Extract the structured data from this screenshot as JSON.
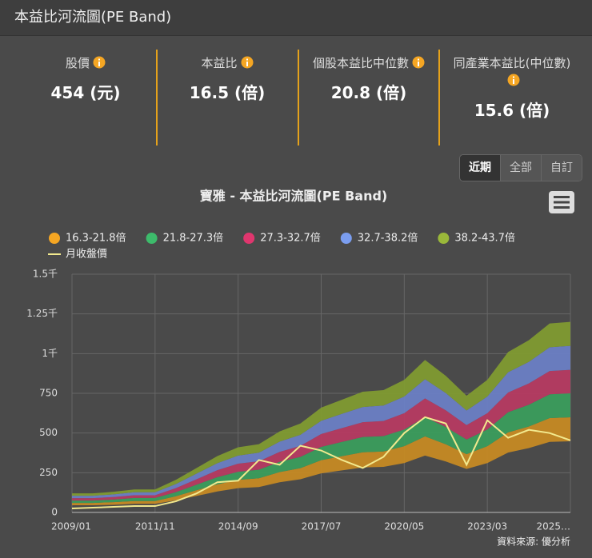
{
  "header": {
    "title": "本益比河流圖(PE Band)"
  },
  "stats": [
    {
      "label": "股價",
      "value": "454 (元)"
    },
    {
      "label": "本益比",
      "value": "16.5 (倍)"
    },
    {
      "label": "個股本益比中位數",
      "value": "20.8 (倍)"
    },
    {
      "label": "同產業本益比(中位數)",
      "value": "15.6 (倍)"
    }
  ],
  "range_buttons": [
    "近期",
    "全部",
    "自訂"
  ],
  "chart_data": {
    "type": "arearange",
    "title": "寶雅 - 本益比河流圖(PE Band)",
    "categories": [
      "2009/01",
      null,
      null,
      null,
      "2011/11",
      null,
      null,
      null,
      "2014/09",
      null,
      null,
      null,
      "2017/07",
      null,
      null,
      null,
      "2020/05",
      null,
      null,
      null,
      "2023/03",
      null,
      null,
      null,
      "2025…"
    ],
    "series": [
      {
        "name": "16.3-21.8倍",
        "color": "#c98b22",
        "legend_color": "#f5a623",
        "low": [
          45,
          45,
          48,
          54,
          54,
          76,
          104,
          132,
          153,
          160,
          190,
          209,
          246,
          265,
          283,
          287,
          311,
          358,
          321,
          274,
          311,
          377,
          405,
          444,
          448
        ],
        "high": [
          60,
          60,
          65,
          72,
          72,
          102,
          140,
          177,
          205,
          215,
          254,
          279,
          329,
          354,
          379,
          384,
          417,
          479,
          429,
          367,
          417,
          504,
          541,
          594,
          599
        ]
      },
      {
        "name": "21.8-27.3倍",
        "color": "#3a9e5c",
        "legend_color": "#3dbb6b",
        "low": [
          60,
          60,
          65,
          72,
          72,
          102,
          140,
          177,
          205,
          215,
          254,
          279,
          329,
          354,
          379,
          384,
          417,
          479,
          429,
          367,
          417,
          504,
          541,
          594,
          599
        ],
        "high": [
          75,
          75,
          81,
          91,
          91,
          128,
          175,
          222,
          256,
          269,
          319,
          350,
          413,
          444,
          475,
          481,
          522,
          600,
          538,
          459,
          522,
          631,
          678,
          744,
          750
        ]
      },
      {
        "name": "27.3-32.7倍",
        "color": "#b93a62",
        "legend_color": "#e0366e",
        "low": [
          75,
          75,
          81,
          91,
          91,
          128,
          175,
          222,
          256,
          269,
          319,
          350,
          413,
          444,
          475,
          481,
          522,
          600,
          538,
          459,
          522,
          631,
          678,
          744,
          750
        ],
        "high": [
          90,
          90,
          97,
          108,
          108,
          153,
          209,
          266,
          307,
          322,
          381,
          419,
          494,
          531,
          568,
          576,
          625,
          718,
          643,
          550,
          625,
          755,
          812,
          890,
          898
        ]
      },
      {
        "name": "32.7-38.2倍",
        "color": "#6b80c8",
        "legend_color": "#7b9ef0",
        "low": [
          90,
          90,
          97,
          108,
          108,
          153,
          209,
          266,
          307,
          322,
          381,
          419,
          494,
          531,
          568,
          576,
          625,
          718,
          643,
          550,
          625,
          755,
          812,
          890,
          898
        ],
        "high": [
          105,
          105,
          114,
          127,
          127,
          179,
          245,
          310,
          358,
          376,
          446,
          489,
          577,
          621,
          664,
          673,
          730,
          839,
          752,
          642,
          730,
          883,
          948,
          1040,
          1049
        ]
      },
      {
        "name": "38.2-43.7倍",
        "color": "#819c30",
        "legend_color": "#9ab83a",
        "low": [
          105,
          105,
          114,
          127,
          127,
          179,
          245,
          310,
          358,
          376,
          446,
          489,
          577,
          621,
          664,
          673,
          730,
          839,
          752,
          642,
          730,
          883,
          948,
          1040,
          1049
        ],
        "high": [
          120,
          120,
          130,
          145,
          145,
          205,
          280,
          355,
          410,
          430,
          510,
          560,
          660,
          710,
          760,
          770,
          835,
          960,
          860,
          735,
          835,
          1010,
          1085,
          1190,
          1200
        ]
      },
      {
        "name": "月收盤價",
        "type": "line",
        "color": "#f2e98e",
        "values": [
          25,
          30,
          35,
          40,
          40,
          70,
          120,
          190,
          200,
          330,
          300,
          420,
          390,
          330,
          280,
          350,
          500,
          600,
          560,
          300,
          580,
          470,
          520,
          500,
          454
        ]
      }
    ],
    "ylim": [
      0,
      1500
    ],
    "yticks": [
      0,
      250,
      500,
      750,
      {
        "value": 1000,
        "label": "1千"
      },
      {
        "value": 1250,
        "label": "1.25千"
      },
      {
        "value": 1500,
        "label": "1.5千"
      }
    ],
    "grid": true,
    "legend": "top-left"
  },
  "source": "資料來源: 優分析"
}
